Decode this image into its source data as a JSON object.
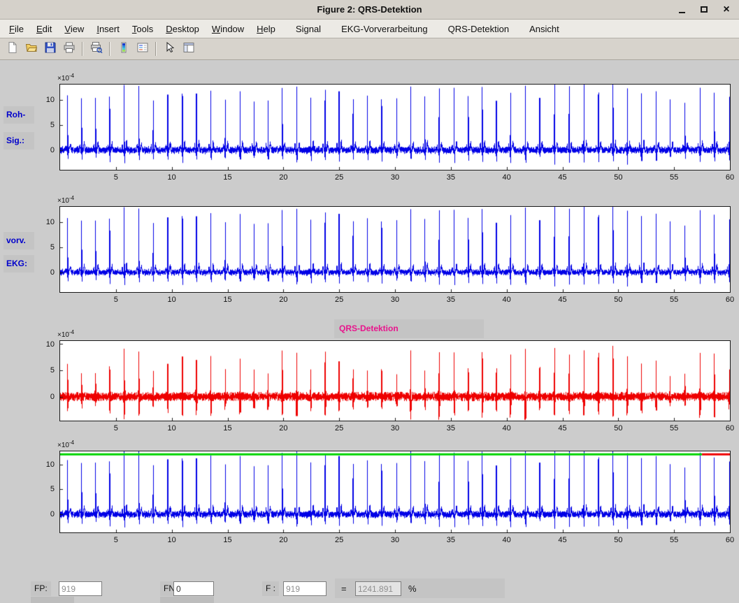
{
  "window": {
    "title": "Figure 2: QRS-Detektion",
    "close_glyph": "×"
  },
  "menubar": {
    "items": [
      {
        "label": "File",
        "underline": 0
      },
      {
        "label": "Edit",
        "underline": 0
      },
      {
        "label": "View",
        "underline": 0
      },
      {
        "label": "Insert",
        "underline": 0
      },
      {
        "label": "Tools",
        "underline": 0
      },
      {
        "label": "Desktop",
        "underline": 0
      },
      {
        "label": "Window",
        "underline": 0
      },
      {
        "label": "Help",
        "underline": 0
      },
      {
        "label": "Signal",
        "underline": null
      },
      {
        "label": "EKG-Vorverarbeitung",
        "underline": null
      },
      {
        "label": "QRS-Detektion",
        "underline": null
      },
      {
        "label": "Ansicht",
        "underline": null
      }
    ]
  },
  "toolbar": {
    "items": [
      {
        "name": "new-document"
      },
      {
        "name": "open-folder"
      },
      {
        "name": "save-figure"
      },
      {
        "name": "print-figure"
      },
      {
        "sep": true
      },
      {
        "name": "print-preview"
      },
      {
        "sep": true
      },
      {
        "name": "insert-colorbar"
      },
      {
        "name": "insert-legend"
      },
      {
        "sep": true
      },
      {
        "name": "edit-plot"
      },
      {
        "name": "property-editor"
      }
    ]
  },
  "side_labels": {
    "raw_line1": "Roh-",
    "raw_line2": "Sig.:",
    "pre_line1": "vorv.",
    "pre_line2": "EKG:"
  },
  "axis": {
    "scale_base": "×10",
    "scale_exp": "-4"
  },
  "chart_data": [
    {
      "id": "roh_signal",
      "type": "line",
      "title": "",
      "x_range": [
        0,
        60
      ],
      "x_ticks": [
        5,
        10,
        15,
        20,
        25,
        30,
        35,
        40,
        45,
        50,
        55,
        60
      ],
      "y_range": [
        -3.9,
        13.0
      ],
      "y_ticks": [
        0,
        5,
        10
      ],
      "y_scale": "1e-4",
      "series": [
        {
          "name": "Roh-Signal",
          "color": "#0000e6",
          "waveform": "ecg",
          "beat_period_s": 1.3,
          "r_amp_min": 10.2,
          "r_amp_max": 13.4,
          "noise": 0.55,
          "seed": 13
        }
      ]
    },
    {
      "id": "vorverarbeitetes_ekg",
      "type": "line",
      "title": "",
      "x_range": [
        0,
        60
      ],
      "x_ticks": [
        5,
        10,
        15,
        20,
        25,
        30,
        35,
        40,
        45,
        50,
        55,
        60
      ],
      "y_range": [
        -3.9,
        13.0
      ],
      "y_ticks": [
        0,
        5,
        10
      ],
      "y_scale": "1e-4",
      "series": [
        {
          "name": "vorverarbeitetes EKG",
          "color": "#0000e6",
          "waveform": "ecg",
          "beat_period_s": 1.3,
          "r_amp_min": 10.2,
          "r_amp_max": 13.4,
          "noise": 0.45,
          "seed": 13
        }
      ]
    },
    {
      "id": "qrs_detektion",
      "type": "line",
      "title": "QRS-Detektion",
      "title_color": "#e8148c",
      "x_range": [
        0,
        60
      ],
      "x_ticks": [
        5,
        10,
        15,
        20,
        25,
        30,
        35,
        40,
        45,
        50,
        55,
        60
      ],
      "y_range": [
        -4.6,
        10.6
      ],
      "y_ticks": [
        0,
        5,
        10
      ],
      "y_scale": "1e-4",
      "series": [
        {
          "name": "QRS-Detektionssignal",
          "color": "#ee0000",
          "waveform": "qrs",
          "beat_period_s": 1.3,
          "amp_min": 4.2,
          "amp_max": 9.8,
          "noise": 0.6,
          "seed": 13
        }
      ]
    },
    {
      "id": "detektion_ergebnis",
      "type": "line",
      "title": "",
      "x_range": [
        0,
        60
      ],
      "x_ticks": [
        5,
        10,
        15,
        20,
        25,
        30,
        35,
        40,
        45,
        50,
        55,
        60
      ],
      "y_range": [
        -3.6,
        12.6
      ],
      "y_ticks": [
        0,
        5,
        10
      ],
      "y_scale": "1e-4",
      "series": [
        {
          "name": "EKG",
          "color": "#0000e6",
          "waveform": "ecg",
          "beat_period_s": 1.3,
          "r_amp_min": 10.2,
          "r_amp_max": 13.4,
          "noise": 0.55,
          "seed": 13
        },
        {
          "name": "Detektionslinie",
          "color": "#00d400",
          "waveform": "hline",
          "y": 12.0,
          "x_span": [
            0,
            57.5
          ],
          "line_width": 3
        },
        {
          "name": "Detektionslinie-Ende",
          "color": "#ee0000",
          "waveform": "hline",
          "y": 12.0,
          "x_span": [
            57.5,
            60
          ],
          "line_width": 3
        }
      ]
    }
  ],
  "footer": {
    "fp_label": "FP:",
    "fp_value": "919",
    "fn_label": "FN:",
    "fn_value": "0",
    "f_label": "F :",
    "f_value": "919",
    "equals": "=",
    "ratio_value": "1241.891",
    "percent": "%"
  }
}
